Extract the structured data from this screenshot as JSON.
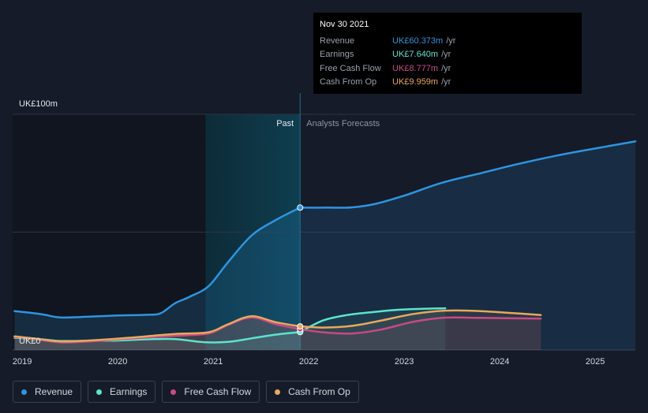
{
  "tooltip": {
    "date": "Nov 30 2021",
    "rows": [
      {
        "label": "Revenue",
        "value": "UK£60.373m",
        "unit": "/yr"
      },
      {
        "label": "Earnings",
        "value": "UK£7.640m",
        "unit": "/yr"
      },
      {
        "label": "Free Cash Flow",
        "value": "UK£8.777m",
        "unit": "/yr"
      },
      {
        "label": "Cash From Op",
        "value": "UK£9.959m",
        "unit": "/yr"
      }
    ]
  },
  "colors": {
    "revenue": "#2f94e0",
    "earnings": "#5ee3cc",
    "fcf": "#c84a84",
    "cfo": "#e8a85c",
    "background": "#151b28",
    "past_band": "#0e3e4f"
  },
  "legend": [
    {
      "label": "Revenue",
      "key": "revenue"
    },
    {
      "label": "Earnings",
      "key": "earnings"
    },
    {
      "label": "Free Cash Flow",
      "key": "fcf"
    },
    {
      "label": "Cash From Op",
      "key": "cfo"
    }
  ],
  "chart_data": {
    "type": "line",
    "title": "",
    "y_top_label": "UK£100m",
    "y_bottom_label": "UK£0",
    "past_label": "Past",
    "forecast_label": "Analysts Forecasts",
    "ylim": [
      0,
      100
    ],
    "xlim": [
      2018.9,
      2025.42
    ],
    "past_end": 2021.91,
    "highlight_start": 2020.92,
    "x_ticks": [
      2019,
      2020,
      2021,
      2022,
      2023,
      2024,
      2025
    ],
    "x_tick_labels": [
      "2019",
      "2020",
      "2021",
      "2022",
      "2023",
      "2024",
      "2025"
    ],
    "series": [
      {
        "name": "Revenue",
        "key": "revenue",
        "x": [
          2018.92,
          2019.2,
          2019.4,
          2019.7,
          2020.0,
          2020.3,
          2020.45,
          2020.6,
          2020.75,
          2020.95,
          2021.15,
          2021.4,
          2021.65,
          2021.91
        ],
        "y": [
          16.5,
          15.2,
          13.8,
          14.1,
          14.6,
          14.9,
          15.6,
          19.8,
          22.5,
          27.0,
          37.0,
          48.5,
          55.0,
          60.4
        ],
        "forecast_x": [
          2021.91,
          2022.2,
          2022.45,
          2022.7,
          2023.0,
          2023.4,
          2023.8,
          2024.2,
          2024.6,
          2025.0,
          2025.42
        ],
        "forecast_y": [
          60.4,
          60.4,
          60.5,
          62.0,
          65.5,
          71.0,
          75.0,
          79.0,
          82.5,
          85.5,
          88.5
        ]
      },
      {
        "name": "Earnings",
        "key": "earnings",
        "x": [
          2018.92,
          2019.2,
          2019.4,
          2019.7,
          2020.0,
          2020.3,
          2020.6,
          2020.9,
          2021.15,
          2021.4,
          2021.65,
          2021.91
        ],
        "y": [
          5.2,
          4.5,
          3.8,
          3.9,
          4.0,
          4.5,
          4.6,
          3.3,
          3.4,
          4.9,
          6.5,
          7.6
        ],
        "forecast_x": [
          2021.91,
          2022.15,
          2022.4,
          2022.7,
          2023.0,
          2023.43
        ],
        "forecast_y": [
          7.6,
          12.5,
          14.8,
          16.2,
          17.2,
          17.7
        ]
      },
      {
        "name": "Free Cash Flow",
        "key": "fcf",
        "x": [
          2018.92,
          2019.1,
          2019.4,
          2019.7,
          2020.0,
          2020.3,
          2020.6,
          2020.95,
          2021.15,
          2021.4,
          2021.65,
          2021.91
        ],
        "y": [
          5.5,
          4.8,
          3.2,
          3.6,
          4.5,
          5.3,
          6.0,
          7.0,
          10.5,
          13.8,
          11.0,
          8.8
        ],
        "forecast_x": [
          2021.91,
          2022.15,
          2022.45,
          2022.75,
          2023.1,
          2023.43,
          2023.8,
          2024.43
        ],
        "forecast_y": [
          8.8,
          7.5,
          7.0,
          8.6,
          12.0,
          13.7,
          13.6,
          13.3
        ]
      },
      {
        "name": "Cash From Op",
        "key": "cfo",
        "x": [
          2018.92,
          2019.1,
          2019.4,
          2019.7,
          2020.0,
          2020.3,
          2020.6,
          2020.95,
          2021.15,
          2021.4,
          2021.65,
          2021.91
        ],
        "y": [
          5.8,
          5.0,
          3.6,
          4.0,
          4.8,
          5.8,
          6.8,
          7.5,
          10.8,
          14.3,
          11.8,
          10.0
        ],
        "forecast_x": [
          2021.91,
          2022.15,
          2022.45,
          2022.75,
          2023.1,
          2023.43,
          2023.8,
          2024.43
        ],
        "forecast_y": [
          10.0,
          9.5,
          10.2,
          12.4,
          15.3,
          16.7,
          16.5,
          14.8
        ]
      }
    ]
  }
}
